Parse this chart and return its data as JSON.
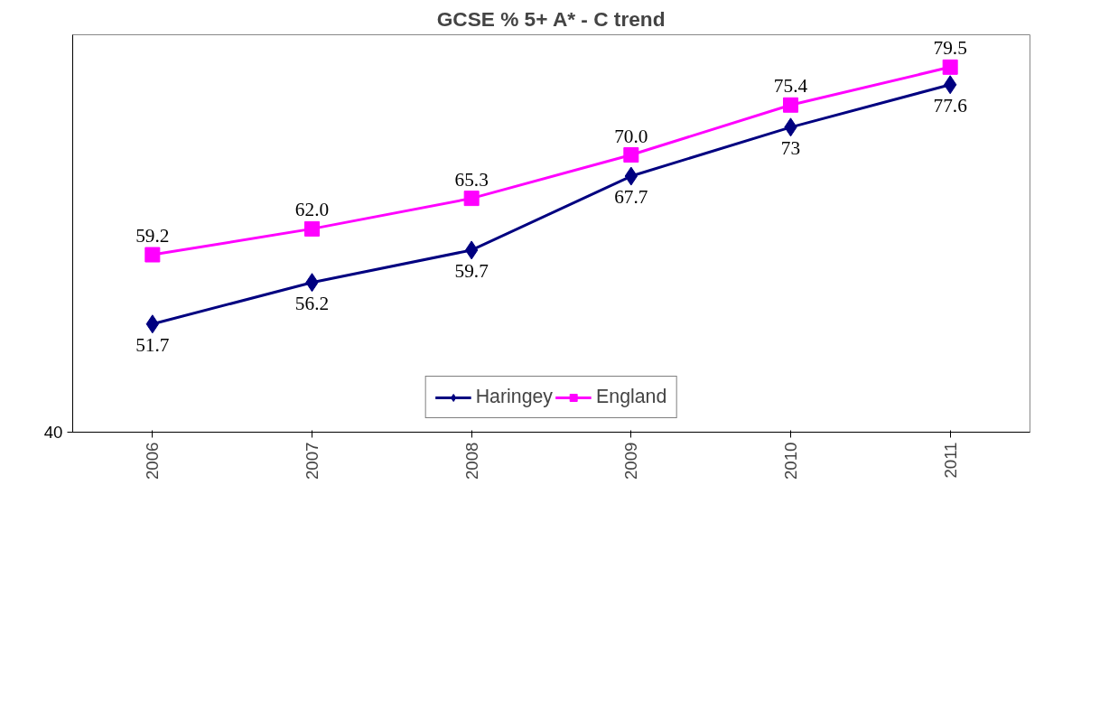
{
  "chart_data": {
    "type": "line",
    "title": "GCSE % 5+ A* - C trend",
    "categories": [
      "2006",
      "2007",
      "2008",
      "2009",
      "2010",
      "2011"
    ],
    "series": [
      {
        "name": "Haringey",
        "color": "#000080",
        "marker": "diamond",
        "values": [
          51.7,
          56.2,
          59.7,
          67.7,
          73,
          77.6
        ],
        "value_labels": [
          "51.7",
          "56.2",
          "59.7",
          "67.7",
          "73",
          "77.6"
        ]
      },
      {
        "name": "England",
        "color": "#ff00ff",
        "marker": "square",
        "values": [
          59.2,
          62.0,
          65.3,
          70.0,
          75.4,
          79.5
        ],
        "value_labels": [
          "59.2",
          "62.0",
          "65.3",
          "70.0",
          "75.4",
          "79.5"
        ]
      }
    ],
    "ylim": [
      40,
      83
    ],
    "annotations": [
      "40"
    ],
    "grid": false,
    "legend": "bottom",
    "line_style": "solid"
  }
}
